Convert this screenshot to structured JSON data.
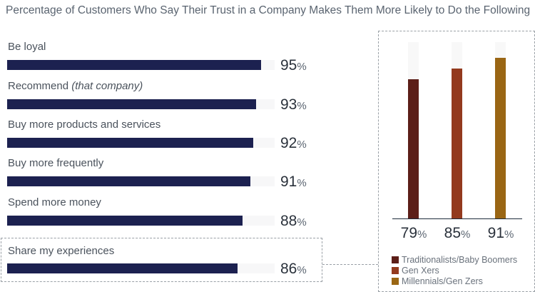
{
  "chart_data": [
    {
      "type": "bar",
      "orientation": "horizontal",
      "title": "Percentage of Customers Who Say Their Trust in a Company Makes Them More Likely to Do the Following",
      "categories": [
        "Be loyal",
        "Recommend (that company)",
        "Buy more products and services",
        "Buy more frequently",
        "Spend more money",
        "Share my experiences"
      ],
      "category_parts": [
        [
          "Be loyal",
          ""
        ],
        [
          "Recommend ",
          "(that company)"
        ],
        [
          "Buy more products and services",
          ""
        ],
        [
          "Buy more frequently",
          ""
        ],
        [
          "Spend more money",
          ""
        ],
        [
          "Share my experiences",
          ""
        ]
      ],
      "values": [
        95,
        93,
        92,
        91,
        88,
        86
      ],
      "unit": "%",
      "xlim": [
        0,
        100
      ],
      "color": "#1c2150",
      "highlighted": "Share my experiences"
    },
    {
      "type": "bar",
      "orientation": "vertical",
      "categories": [
        "Traditionalists/Baby Boomers",
        "Gen Xers",
        "Millennials/Gen Zers"
      ],
      "values": [
        79,
        85,
        91
      ],
      "unit": "%",
      "ylim": [
        0,
        100
      ],
      "colors": [
        "#5c1e18",
        "#933a1e",
        "#9a6614"
      ],
      "legend": "bottom-left"
    }
  ]
}
